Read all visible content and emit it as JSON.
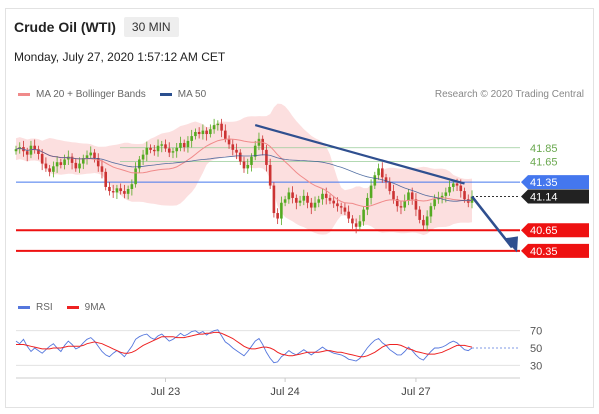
{
  "header": {
    "title": "Crude Oil (WTI)",
    "timeframe": "30 MIN",
    "date": "Monday, July 27, 2020 1:57:12 AM CET"
  },
  "legend": {
    "ma20_bb": "MA 20 + Bollinger Bands",
    "ma50": "MA 50",
    "credit": "Research © 2020 Trading Central",
    "rsi": "RSI",
    "ma9": "9MA"
  },
  "colors": {
    "bullish": "#55aa22",
    "bearish": "#cc3333",
    "bb_band": "#fbd9d9",
    "ma20": "#f08a8a",
    "ma50": "#2a4f8f",
    "support": "#ee1111",
    "pivot": "#4477ee",
    "trend": "#2f4f8f",
    "rsi": "#5577dd",
    "rsi_ma": "#ee2222"
  },
  "chart_data": {
    "type": "candlestick",
    "price_axis": {
      "min": 40.1,
      "max": 42.4
    },
    "levels": [
      {
        "label": "41.85",
        "value": 41.85,
        "kind": "resistance"
      },
      {
        "label": "41.65",
        "value": 41.65,
        "kind": "resistance"
      },
      {
        "label": "41.35",
        "value": 41.35,
        "kind": "pivot"
      },
      {
        "label": "41.14",
        "value": 41.14,
        "kind": "last"
      },
      {
        "label": "40.65",
        "value": 40.65,
        "kind": "support"
      },
      {
        "label": "40.35",
        "value": 40.35,
        "kind": "support"
      }
    ],
    "x_labels": [
      "Jul 23",
      "Jul 24",
      "Jul 27"
    ],
    "rsi_axis": {
      "ticks": [
        "70",
        "50",
        "30"
      ]
    },
    "closes": [
      41.83,
      41.86,
      41.8,
      41.75,
      41.88,
      41.83,
      41.76,
      41.62,
      41.55,
      41.5,
      41.58,
      41.64,
      41.6,
      41.68,
      41.72,
      41.63,
      41.55,
      41.62,
      41.7,
      41.74,
      41.78,
      41.7,
      41.58,
      41.5,
      41.28,
      41.22,
      41.2,
      41.26,
      41.22,
      41.18,
      41.25,
      41.32,
      41.55,
      41.68,
      41.75,
      41.85,
      41.82,
      41.8,
      41.88,
      41.9,
      41.84,
      41.78,
      41.8,
      41.85,
      41.92,
      41.86,
      41.95,
      42.02,
      42.08,
      42.05,
      42.1,
      42.05,
      42.12,
      42.18,
      42.2,
      42.1,
      41.98,
      41.9,
      41.82,
      41.78,
      41.65,
      41.55,
      41.6,
      41.72,
      41.88,
      41.98,
      41.82,
      41.6,
      41.3,
      40.9,
      40.82,
      41.05,
      41.1,
      41.2,
      41.12,
      41.05,
      41.08,
      41.15,
      41.05,
      40.98,
      41.05,
      41.1,
      41.18,
      41.12,
      41.08,
      41.04,
      41.0,
      40.98,
      40.92,
      40.82,
      40.75,
      40.7,
      40.78,
      40.95,
      41.12,
      41.3,
      41.45,
      41.55,
      41.42,
      41.35,
      41.22,
      41.1,
      41.0,
      40.98,
      41.08,
      41.2,
      41.1,
      40.95,
      40.8,
      40.72,
      40.85,
      41.0,
      41.1,
      41.12,
      41.15,
      41.2,
      41.28,
      41.33,
      41.3,
      41.22,
      41.1,
      41.05,
      41.14
    ],
    "rsi_values": [
      58,
      55,
      60,
      52,
      46,
      50,
      47,
      44,
      48,
      52,
      55,
      50,
      46,
      53,
      58,
      54,
      49,
      51,
      56,
      60,
      62,
      58,
      52,
      46,
      42,
      40,
      44,
      47,
      44,
      40,
      46,
      52,
      60,
      63,
      65,
      66,
      62,
      60,
      64,
      66,
      62,
      58,
      60,
      63,
      67,
      64,
      66,
      69,
      70,
      67,
      69,
      65,
      68,
      70,
      71,
      64,
      57,
      54,
      50,
      47,
      44,
      41,
      46,
      52,
      58,
      61,
      54,
      45,
      38,
      33,
      34,
      40,
      43,
      47,
      44,
      42,
      45,
      48,
      45,
      42,
      45,
      48,
      51,
      48,
      46,
      44,
      43,
      42,
      40,
      37,
      36,
      35,
      38,
      44,
      50,
      55,
      59,
      61,
      56,
      53,
      48,
      45,
      42,
      42,
      46,
      51,
      47,
      42,
      38,
      36,
      41,
      46,
      50,
      50,
      51,
      53,
      56,
      58,
      56,
      52,
      48,
      47,
      50
    ],
    "rsi_ma9": [
      54,
      54,
      54,
      53,
      52,
      51,
      50,
      49,
      49,
      49,
      50,
      50,
      50,
      51,
      52,
      52,
      52,
      52,
      53,
      55,
      56,
      57,
      56,
      55,
      53,
      51,
      49,
      47,
      45,
      44,
      44,
      45,
      47,
      50,
      53,
      55,
      57,
      59,
      61,
      63,
      63,
      63,
      63,
      62,
      62,
      62,
      63,
      64,
      65,
      66,
      66,
      67,
      67,
      68,
      68,
      67,
      65,
      63,
      61,
      58,
      55,
      52,
      50,
      49,
      49,
      50,
      51,
      51,
      50,
      48,
      45,
      43,
      42,
      41,
      41,
      42,
      43,
      44,
      45,
      45,
      45,
      45,
      46,
      47,
      47,
      46,
      45,
      45,
      44,
      43,
      42,
      41,
      40,
      40,
      41,
      43,
      45,
      48,
      51,
      53,
      54,
      54,
      54,
      53,
      51,
      49,
      48,
      46,
      45,
      44,
      43,
      43,
      43,
      44,
      45,
      47,
      49,
      51,
      53,
      53,
      53,
      52,
      51
    ]
  }
}
